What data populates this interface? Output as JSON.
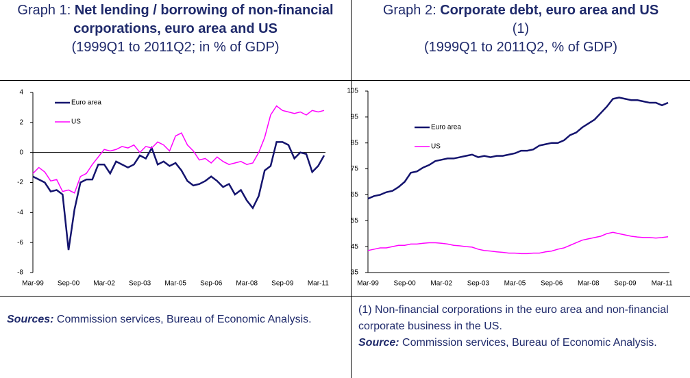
{
  "chart_data": [
    {
      "type": "line",
      "label": "Graph 1:",
      "title": "Net lending / borrowing of non-financial corporations, euro area and US",
      "subtitle": "(1999Q1 to 2011Q2; in % of GDP)",
      "categories": [
        "Mar-99",
        null,
        null,
        null,
        null,
        null,
        "Sep-00",
        null,
        null,
        null,
        null,
        null,
        "Mar-02",
        null,
        null,
        null,
        null,
        null,
        "Sep-03",
        null,
        null,
        null,
        null,
        null,
        "Mar-05",
        null,
        null,
        null,
        null,
        null,
        "Sep-06",
        null,
        null,
        null,
        null,
        null,
        "Mar-08",
        null,
        null,
        null,
        null,
        null,
        "Sep-09",
        null,
        null,
        null,
        null,
        null,
        "Mar-11",
        null
      ],
      "series": [
        {
          "name": "Euro area",
          "color": "#14146e",
          "values": [
            -1.6,
            -1.8,
            -2.0,
            -2.6,
            -2.5,
            -2.8,
            -6.5,
            -3.8,
            -2.0,
            -1.8,
            -1.8,
            -0.8,
            -0.8,
            -1.4,
            -0.6,
            -0.8,
            -1.0,
            -0.8,
            -0.2,
            -0.4,
            0.3,
            -0.8,
            -0.6,
            -0.9,
            -0.7,
            -1.2,
            -1.9,
            -2.2,
            -2.1,
            -1.9,
            -1.6,
            -1.9,
            -2.3,
            -2.1,
            -2.8,
            -2.5,
            -3.2,
            -3.7,
            -2.9,
            -1.2,
            -0.9,
            0.7,
            0.7,
            0.5,
            -0.4,
            0.0,
            -0.1,
            -1.3,
            -0.9,
            -0.2
          ]
        },
        {
          "name": "US",
          "color": "#ff00ff",
          "values": [
            -1.4,
            -1.0,
            -1.3,
            -1.9,
            -1.8,
            -2.6,
            -2.5,
            -2.7,
            -1.6,
            -1.4,
            -0.8,
            -0.3,
            0.2,
            0.1,
            0.2,
            0.4,
            0.3,
            0.5,
            0.0,
            0.4,
            0.3,
            0.7,
            0.5,
            0.1,
            1.1,
            1.3,
            0.5,
            0.1,
            -0.5,
            -0.4,
            -0.7,
            -0.3,
            -0.6,
            -0.8,
            -0.7,
            -0.6,
            -0.8,
            -0.7,
            0.0,
            1.0,
            2.5,
            3.1,
            2.8,
            2.7,
            2.6,
            2.7,
            2.5,
            2.8,
            2.7,
            2.8
          ]
        }
      ],
      "ylim": [
        -8,
        4
      ],
      "yticks": [
        -8,
        -6,
        -4,
        -2,
        0,
        2,
        4
      ],
      "legend": "upper left",
      "sources_label": "Sources:",
      "sources": "Commission services, Bureau of Economic Analysis."
    },
    {
      "type": "line",
      "label": "Graph 2:",
      "title": "Corporate debt, euro area and US",
      "title_note": "(1)",
      "subtitle": "(1999Q1 to 2011Q2, % of GDP)",
      "categories": [
        "Mar-99",
        null,
        null,
        null,
        null,
        null,
        "Sep-00",
        null,
        null,
        null,
        null,
        null,
        "Mar-02",
        null,
        null,
        null,
        null,
        null,
        "Sep-03",
        null,
        null,
        null,
        null,
        null,
        "Mar-05",
        null,
        null,
        null,
        null,
        null,
        "Sep-06",
        null,
        null,
        null,
        null,
        null,
        "Mar-08",
        null,
        null,
        null,
        null,
        null,
        "Sep-09",
        null,
        null,
        null,
        null,
        null,
        "Mar-11",
        null
      ],
      "series": [
        {
          "name": "Euro area",
          "color": "#14146e",
          "values": [
            63.5,
            64.5,
            65,
            66,
            66.5,
            68,
            70,
            73.5,
            74,
            75.5,
            76.5,
            78,
            78.5,
            79,
            79,
            79.5,
            80,
            80.5,
            79.5,
            80,
            79.5,
            80,
            80,
            80.5,
            81,
            82,
            82,
            82.5,
            84,
            84.5,
            85,
            85,
            86,
            88,
            89,
            91,
            92.5,
            94,
            96.5,
            99,
            102,
            102.5,
            102,
            101.5,
            101.5,
            101,
            100.5,
            100.5,
            99.5,
            100.5
          ]
        },
        {
          "name": "US",
          "color": "#ff00ff",
          "values": [
            43.5,
            44,
            44.5,
            44.5,
            45,
            45.5,
            45.5,
            46,
            46,
            46.3,
            46.5,
            46.5,
            46.3,
            46,
            45.5,
            45.3,
            45,
            44.8,
            44,
            43.5,
            43.3,
            43,
            42.8,
            42.5,
            42.5,
            42.3,
            42.3,
            42.5,
            42.5,
            43,
            43.3,
            44,
            44.5,
            45.5,
            46.5,
            47.5,
            48,
            48.5,
            49,
            50,
            50.5,
            50,
            49.5,
            49,
            48.7,
            48.5,
            48.5,
            48.3,
            48.5,
            48.8
          ]
        }
      ],
      "ylim": [
        35,
        105
      ],
      "yticks": [
        35,
        45,
        55,
        65,
        75,
        85,
        95,
        105
      ],
      "legend": "upper left",
      "note": "(1) Non-financial corporations in the euro area and non-financial corporate business in the US.",
      "sources_label": "Source:",
      "sources": "Commission services, Bureau of Economic Analysis."
    }
  ]
}
